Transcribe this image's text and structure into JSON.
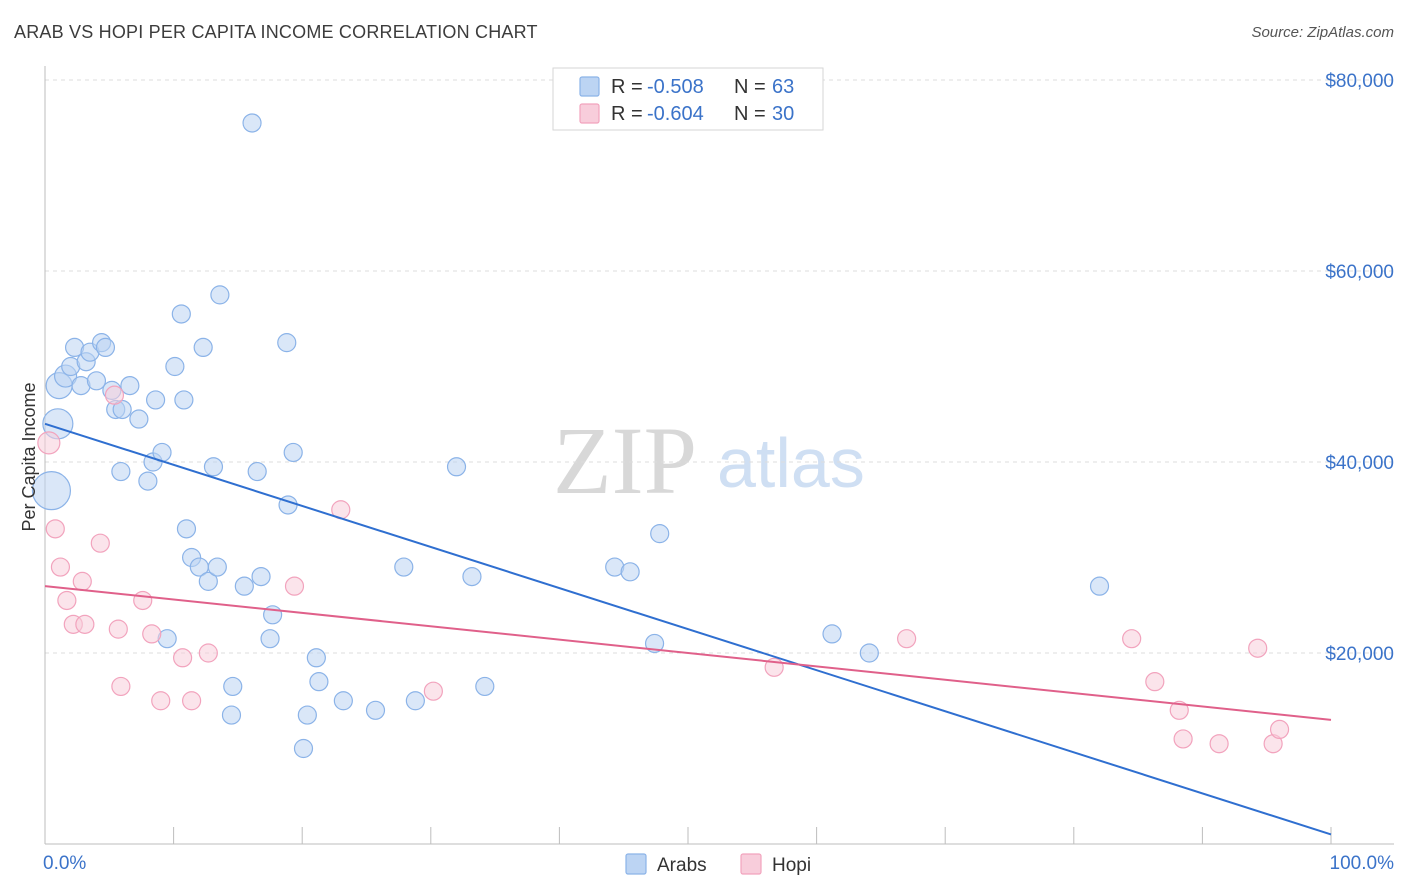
{
  "title": "ARAB VS HOPI PER CAPITA INCOME CORRELATION CHART",
  "source": "Source: ZipAtlas.com",
  "watermark": {
    "part1": "ZIP",
    "part2": "atlas"
  },
  "chart_data": {
    "type": "scatter",
    "xlabel": "",
    "ylabel": "Per Capita Income",
    "xlim": [
      0,
      100
    ],
    "ylim": [
      0,
      80000
    ],
    "x_tick_labels": [
      "0.0%",
      "100.0%"
    ],
    "y_ticks": [
      {
        "value": 20000,
        "label": "$20,000"
      },
      {
        "value": 40000,
        "label": "$40,000"
      },
      {
        "value": 60000,
        "label": "$60,000"
      },
      {
        "value": 80000,
        "label": "$80,000"
      }
    ],
    "grid": true,
    "legend_position": "top-center",
    "stats": [
      {
        "r_label": "R =",
        "r_value": "-0.508",
        "n_label": "N =",
        "n_value": "63"
      },
      {
        "r_label": "R =",
        "r_value": "-0.604",
        "n_label": "N =",
        "n_value": "30"
      }
    ],
    "series": [
      {
        "name": "Arabs",
        "color": "#8bb3e8",
        "fill": "#bcd4f3",
        "line_color": "#2f6fd0",
        "trend": {
          "x": [
            0,
            100
          ],
          "y": [
            44000,
            1000
          ]
        },
        "points": [
          [
            0.5,
            37000,
            18
          ],
          [
            1.0,
            44000,
            14
          ],
          [
            1.1,
            48000,
            12
          ],
          [
            1.6,
            49000,
            10
          ],
          [
            2.0,
            50000,
            8
          ],
          [
            2.3,
            52000,
            8
          ],
          [
            2.8,
            48000,
            8
          ],
          [
            3.2,
            50500,
            8
          ],
          [
            3.5,
            51500,
            8
          ],
          [
            4.0,
            48500,
            8
          ],
          [
            4.4,
            52500,
            8
          ],
          [
            4.7,
            52000,
            8
          ],
          [
            5.2,
            47500,
            8
          ],
          [
            5.5,
            45500,
            8
          ],
          [
            6.0,
            45500,
            8
          ],
          [
            6.6,
            48000,
            8
          ],
          [
            7.3,
            44500,
            8
          ],
          [
            8.0,
            38000,
            8
          ],
          [
            8.4,
            40000,
            8
          ],
          [
            8.6,
            46500,
            8
          ],
          [
            9.1,
            41000,
            8
          ],
          [
            5.9,
            39000,
            8
          ],
          [
            9.5,
            21500,
            8
          ],
          [
            10.1,
            50000,
            8
          ],
          [
            10.6,
            55500,
            8
          ],
          [
            10.8,
            46500,
            8
          ],
          [
            11.0,
            33000,
            8
          ],
          [
            11.4,
            30000,
            8
          ],
          [
            12.0,
            29000,
            8
          ],
          [
            12.3,
            52000,
            8
          ],
          [
            12.7,
            27500,
            8
          ],
          [
            13.1,
            39500,
            8
          ],
          [
            13.4,
            29000,
            8
          ],
          [
            13.6,
            57500,
            8
          ],
          [
            14.5,
            13500,
            8
          ],
          [
            14.6,
            16500,
            8
          ],
          [
            15.5,
            27000,
            8
          ],
          [
            16.1,
            75500,
            8
          ],
          [
            16.5,
            39000,
            8
          ],
          [
            16.8,
            28000,
            8
          ],
          [
            17.5,
            21500,
            8
          ],
          [
            17.7,
            24000,
            8
          ],
          [
            18.8,
            52500,
            8
          ],
          [
            18.9,
            35500,
            8
          ],
          [
            19.3,
            41000,
            8
          ],
          [
            20.1,
            10000,
            8
          ],
          [
            20.4,
            13500,
            8
          ],
          [
            21.1,
            19500,
            8
          ],
          [
            21.3,
            17000,
            8
          ],
          [
            23.2,
            15000,
            8
          ],
          [
            25.7,
            14000,
            8
          ],
          [
            27.9,
            29000,
            8
          ],
          [
            28.8,
            15000,
            8
          ],
          [
            32.0,
            39500,
            8
          ],
          [
            33.2,
            28000,
            8
          ],
          [
            34.2,
            16500,
            8
          ],
          [
            44.3,
            29000,
            8
          ],
          [
            45.5,
            28500,
            8
          ],
          [
            47.4,
            21000,
            8
          ],
          [
            47.8,
            32500,
            8
          ],
          [
            61.2,
            22000,
            8
          ],
          [
            64.1,
            20000,
            8
          ],
          [
            82.0,
            27000,
            8
          ]
        ]
      },
      {
        "name": "Hopi",
        "color": "#f2a3bd",
        "fill": "#f8cddb",
        "line_color": "#e0608a",
        "trend": {
          "x": [
            0,
            100
          ],
          "y": [
            27000,
            13000
          ]
        },
        "points": [
          [
            0.3,
            42000,
            10
          ],
          [
            0.8,
            33000,
            8
          ],
          [
            1.2,
            29000,
            8
          ],
          [
            1.7,
            25500,
            8
          ],
          [
            2.2,
            23000,
            8
          ],
          [
            2.9,
            27500,
            8
          ],
          [
            3.1,
            23000,
            8
          ],
          [
            4.3,
            31500,
            8
          ],
          [
            5.4,
            47000,
            8
          ],
          [
            5.7,
            22500,
            8
          ],
          [
            5.9,
            16500,
            8
          ],
          [
            7.6,
            25500,
            8
          ],
          [
            8.3,
            22000,
            8
          ],
          [
            9.0,
            15000,
            8
          ],
          [
            10.7,
            19500,
            8
          ],
          [
            11.4,
            15000,
            8
          ],
          [
            12.7,
            20000,
            8
          ],
          [
            19.4,
            27000,
            8
          ],
          [
            23.0,
            35000,
            8
          ],
          [
            30.2,
            16000,
            8
          ],
          [
            56.7,
            18500,
            8
          ],
          [
            67.0,
            21500,
            8
          ],
          [
            84.5,
            21500,
            8
          ],
          [
            86.3,
            17000,
            8
          ],
          [
            88.2,
            14000,
            8
          ],
          [
            88.5,
            11000,
            8
          ],
          [
            91.3,
            10500,
            8
          ],
          [
            94.3,
            20500,
            8
          ],
          [
            95.5,
            10500,
            8
          ],
          [
            96.0,
            12000,
            8
          ]
        ]
      }
    ]
  }
}
